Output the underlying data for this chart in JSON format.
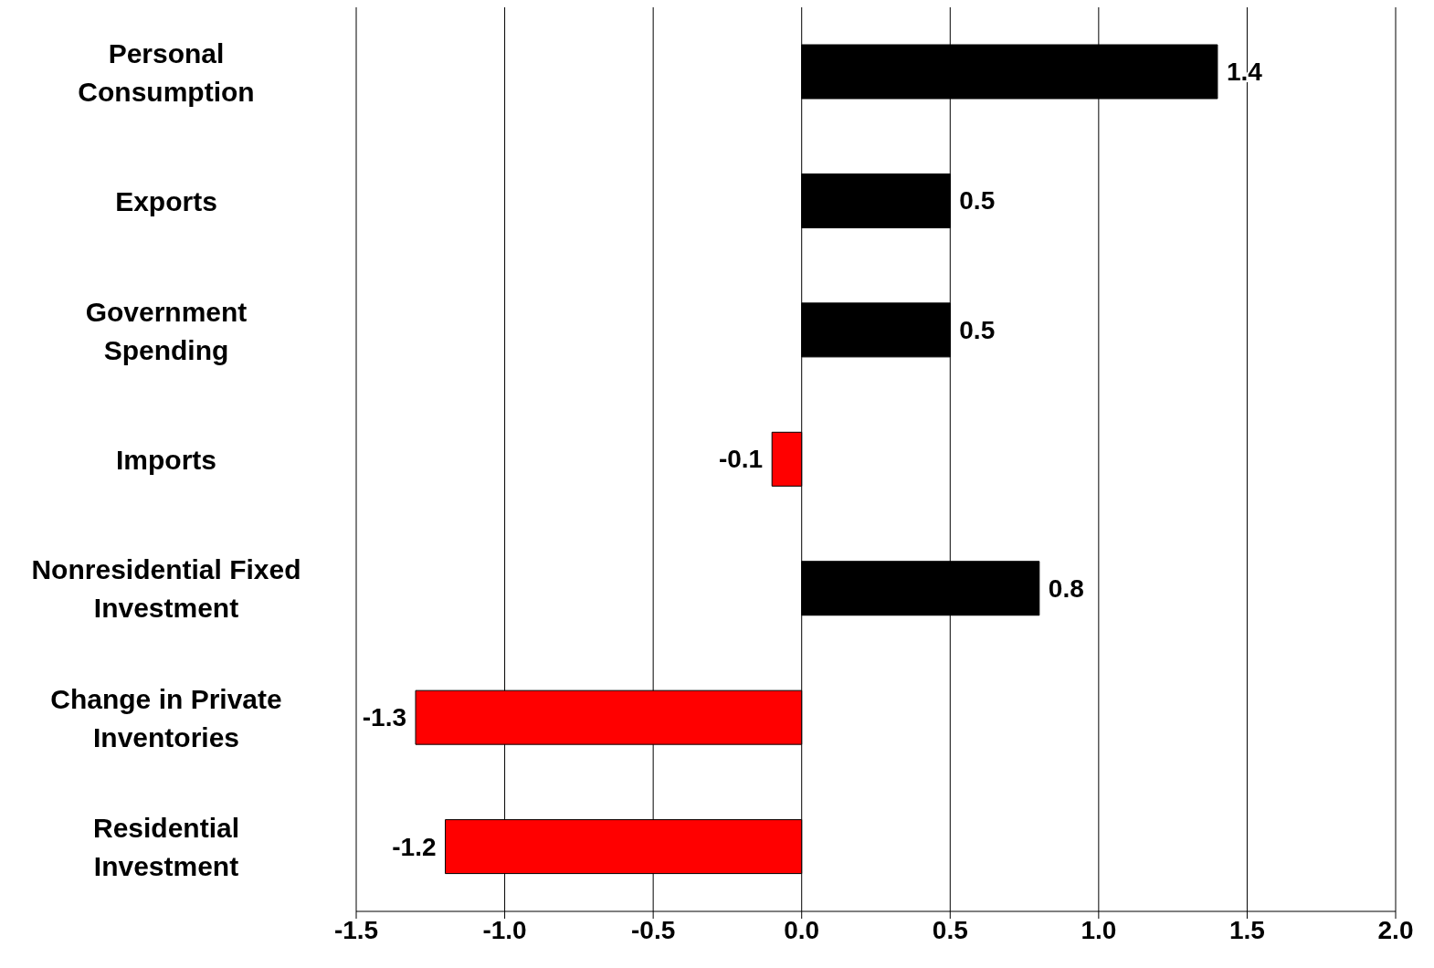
{
  "chart_data": {
    "type": "bar",
    "orientation": "horizontal",
    "categories": [
      "Personal Consumption",
      "Exports",
      "Government Spending",
      "Imports",
      "Nonresidential Fixed Investment",
      "Change in Private Inventories",
      "Residential Investment"
    ],
    "values": [
      1.4,
      0.5,
      0.5,
      -0.1,
      0.8,
      -1.3,
      -1.2
    ],
    "colors": [
      "#000000",
      "#000000",
      "#000000",
      "#ff0000",
      "#000000",
      "#ff0000",
      "#ff0000"
    ],
    "xlim": [
      -1.5,
      2.0
    ],
    "xticks": [
      {
        "value": -1.5,
        "label": "-1.5"
      },
      {
        "value": -1,
        "label": "-1.0"
      },
      {
        "value": -0.5,
        "label": "-0.5"
      },
      {
        "value": 0,
        "label": "0.0"
      },
      {
        "value": 0.5,
        "label": "0.5"
      },
      {
        "value": 1,
        "label": "1.0"
      },
      {
        "value": 1.5,
        "label": "1.5"
      },
      {
        "value": 2,
        "label": "2.0"
      }
    ],
    "grid": "x",
    "data_labels": true
  }
}
